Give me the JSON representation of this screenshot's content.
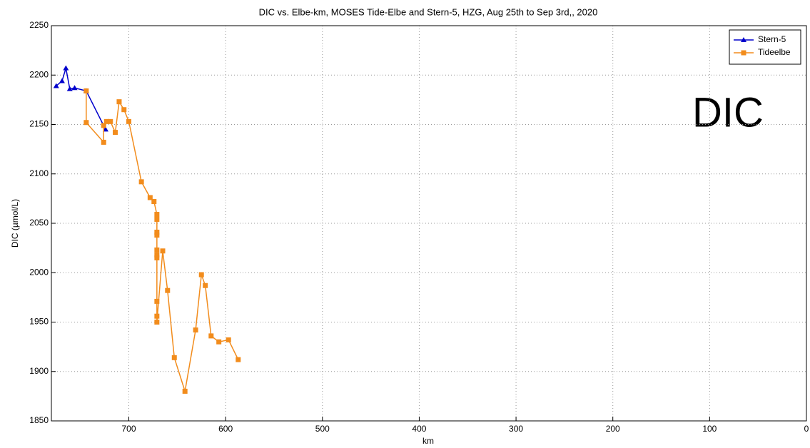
{
  "chart_data": {
    "type": "line",
    "title": "DIC vs. Elbe-km, MOSES Tide-Elbe and Stern-5, HZG, Aug 25th to Sep 3rd,, 2020",
    "x_label": "km",
    "y_label": "DIC (µmol/L)",
    "annotation": "DIC",
    "xlim": [
      780,
      0
    ],
    "xticks": [
      700,
      600,
      500,
      400,
      300,
      200,
      100,
      0
    ],
    "ylim": [
      1850,
      2250
    ],
    "yticks": [
      1850,
      1900,
      1950,
      2000,
      2050,
      2100,
      2150,
      2200,
      2250
    ],
    "grid": true,
    "legend": "northeast",
    "series": [
      {
        "name": "Stern-5",
        "color": "#0000cc",
        "marker": "triangle",
        "x": [
          775,
          769,
          765,
          761,
          756,
          744,
          724
        ],
        "values": [
          2189,
          2194,
          2207,
          2186,
          2187,
          2184,
          2145
        ]
      },
      {
        "name": "Tideelbe",
        "color": "#f28c1c",
        "marker": "square",
        "x": [
          744,
          744,
          726,
          726,
          723,
          719,
          714,
          710,
          705,
          700,
          687,
          678,
          674,
          671,
          671,
          671,
          671,
          671,
          671,
          671,
          671,
          671,
          671,
          665,
          660,
          653,
          642,
          631,
          625,
          621,
          615,
          607,
          597,
          587
        ],
        "values": [
          2184,
          2152,
          2132,
          2149,
          2153,
          2153,
          2142,
          2173,
          2165,
          2153,
          2092,
          2076,
          2072,
          2059,
          2054,
          2041,
          2038,
          2023,
          2018,
          2015,
          1971,
          1956,
          1950,
          2022,
          1982,
          1914,
          1880,
          1942,
          1998,
          1987,
          1936,
          1930,
          1932,
          1912
        ]
      }
    ]
  }
}
